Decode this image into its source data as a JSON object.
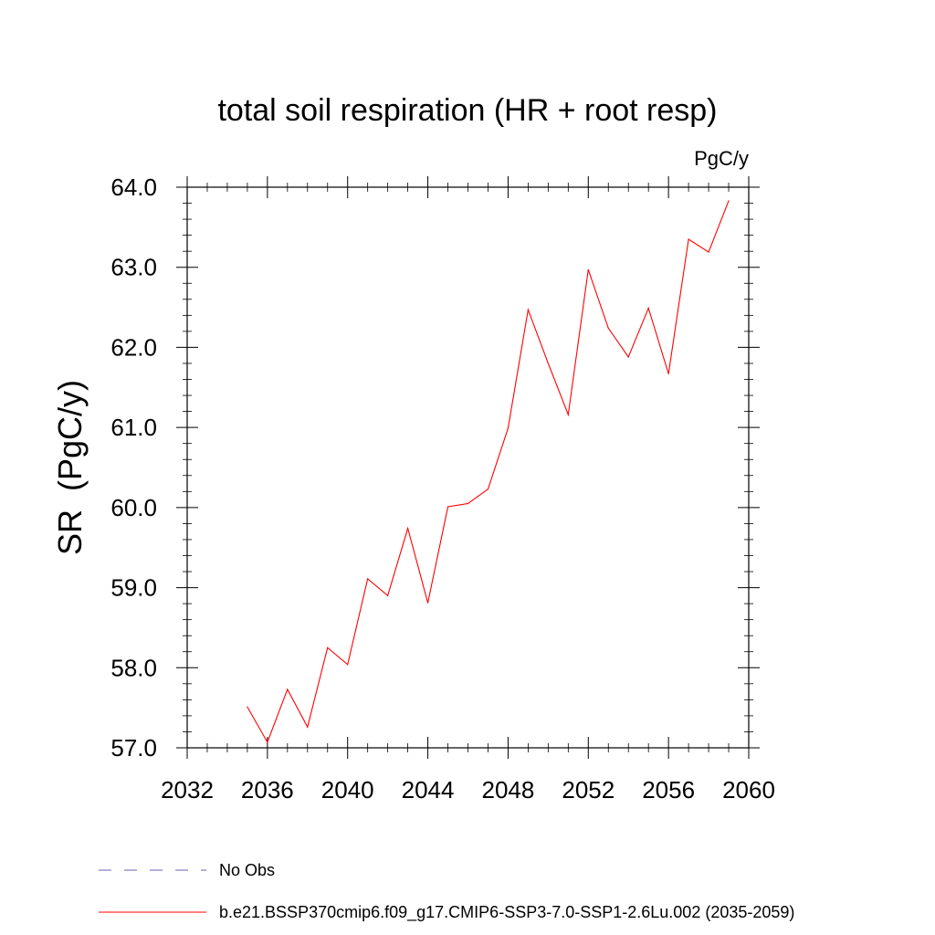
{
  "chart_data": {
    "type": "line",
    "title": "total soil respiration (HR + root resp)",
    "units_label": "PgC/y",
    "xlabel": "",
    "ylabel": "SR  (PgC/y)",
    "xlim": [
      2032,
      2060
    ],
    "ylim": [
      57.0,
      64.0
    ],
    "x_ticks": [
      2032,
      2036,
      2040,
      2044,
      2048,
      2052,
      2056,
      2060
    ],
    "x_tick_labels": [
      "2032",
      "2036",
      "2040",
      "2044",
      "2048",
      "2052",
      "2056",
      "2060"
    ],
    "y_ticks": [
      57.0,
      58.0,
      59.0,
      60.0,
      61.0,
      62.0,
      63.0,
      64.0
    ],
    "y_tick_labels": [
      "57.0",
      "58.0",
      "59.0",
      "60.0",
      "61.0",
      "62.0",
      "63.0",
      "64.0"
    ],
    "grid": false,
    "legend_position": "bottom-left",
    "legend": [
      {
        "label": "No Obs",
        "color": "#6b5fb0",
        "style": "dashed"
      },
      {
        "label": "b.e21.BSSP370cmip6.f09_g17.CMIP6-SSP3-7.0-SSP1-2.6Lu.002 (2035-2059)",
        "color": "#ff0000",
        "style": "solid"
      }
    ],
    "series": [
      {
        "name": "b.e21.BSSP370cmip6.f09_g17.CMIP6-SSP3-7.0-SSP1-2.6Lu.002 (2035-2059)",
        "color": "#ff0000",
        "x": [
          2035,
          2036,
          2037,
          2038,
          2039,
          2040,
          2041,
          2042,
          2043,
          2044,
          2045,
          2046,
          2047,
          2048,
          2049,
          2050,
          2051,
          2052,
          2053,
          2054,
          2055,
          2056,
          2057,
          2058,
          2059
        ],
        "values": [
          57.51,
          57.07,
          57.73,
          57.26,
          58.25,
          58.04,
          59.11,
          58.9,
          59.74,
          58.81,
          60.01,
          60.05,
          60.23,
          60.99,
          62.47,
          61.8,
          61.16,
          62.97,
          62.24,
          61.88,
          62.49,
          61.67,
          63.35,
          63.19,
          63.83
        ]
      }
    ]
  }
}
